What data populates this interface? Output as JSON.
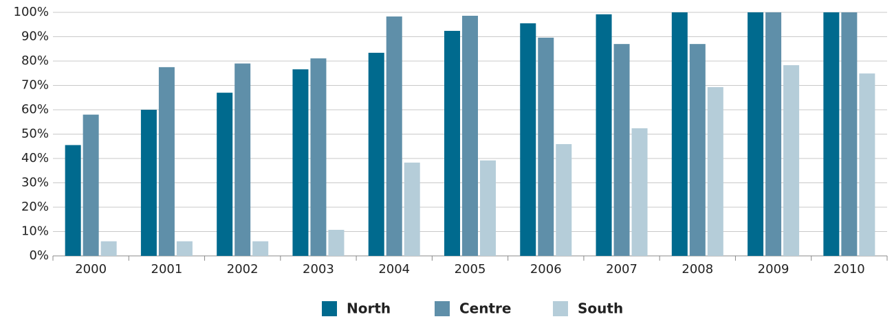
{
  "chart_data": {
    "type": "bar",
    "categories": [
      "2000",
      "2001",
      "2002",
      "2003",
      "2004",
      "2005",
      "2006",
      "2007",
      "2008",
      "2009",
      "2010"
    ],
    "series": [
      {
        "name": "North",
        "color": "#006a8e",
        "values": [
          45.5,
          60,
          67,
          76.6,
          83.4,
          92.4,
          95.5,
          99.2,
          100,
          100,
          100
        ]
      },
      {
        "name": "Centre",
        "color": "#5f8fa9",
        "values": [
          58,
          77.5,
          79,
          81.1,
          98.3,
          98.6,
          89.6,
          87,
          87,
          100,
          100
        ]
      },
      {
        "name": "South",
        "color": "#b5cdd9",
        "values": [
          6,
          6,
          6,
          10.7,
          38.3,
          39.2,
          45.9,
          52.4,
          69.3,
          78.3,
          74.9
        ]
      }
    ],
    "ylim": [
      0,
      100
    ],
    "yticks": [
      {
        "value": 0,
        "label": "0%"
      },
      {
        "value": 10,
        "label": "10%"
      },
      {
        "value": 20,
        "label": "20%"
      },
      {
        "value": 30,
        "label": "30%"
      },
      {
        "value": 40,
        "label": "40%"
      },
      {
        "value": 50,
        "label": "50%"
      },
      {
        "value": 60,
        "label": "60%"
      },
      {
        "value": 70,
        "label": "70%"
      },
      {
        "value": 80,
        "label": "80%"
      },
      {
        "value": 90,
        "label": "90%"
      },
      {
        "value": 100,
        "label": "100%"
      }
    ],
    "grid": true,
    "legend": "bottom"
  }
}
